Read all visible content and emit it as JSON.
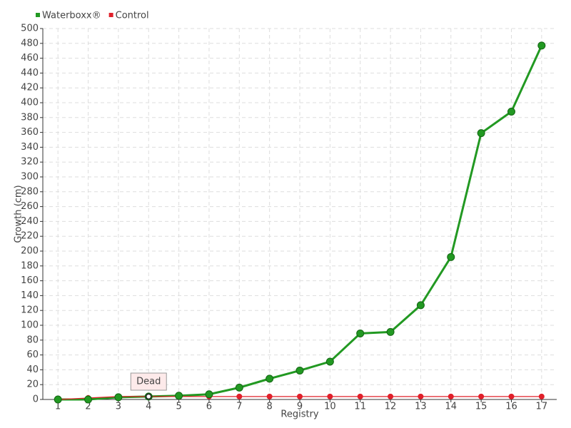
{
  "chart_data": {
    "type": "line",
    "x_label": "Registry",
    "y_label": "Growth (cm)",
    "x": [
      1,
      2,
      3,
      4,
      5,
      6,
      7,
      8,
      9,
      10,
      11,
      12,
      13,
      14,
      15,
      16,
      17
    ],
    "series": [
      {
        "name": "Waterboxx®",
        "color": "#229922",
        "values": [
          0,
          0,
          3,
          4,
          5,
          7,
          16,
          28,
          39,
          51,
          89,
          91,
          127,
          192,
          359,
          388,
          477
        ]
      },
      {
        "name": "Control",
        "color": "#e0202a",
        "values": [
          0,
          2,
          4,
          4,
          4,
          4,
          4,
          4,
          4,
          4,
          4,
          4,
          4,
          4,
          4,
          4,
          4
        ]
      }
    ],
    "annotations": [
      {
        "text": "Dead",
        "x": 4
      }
    ],
    "xlim": [
      0.5,
      17.5
    ],
    "xticks": [
      1,
      2,
      3,
      4,
      5,
      6,
      7,
      8,
      9,
      10,
      11,
      12,
      13,
      14,
      15,
      16,
      17
    ],
    "ylim": [
      0,
      500
    ],
    "yticks": [
      0,
      20,
      40,
      60,
      80,
      100,
      120,
      140,
      160,
      180,
      200,
      220,
      240,
      260,
      280,
      300,
      320,
      340,
      360,
      380,
      400,
      420,
      440,
      460,
      480,
      500
    ],
    "grid": true,
    "legend": "top-left"
  }
}
